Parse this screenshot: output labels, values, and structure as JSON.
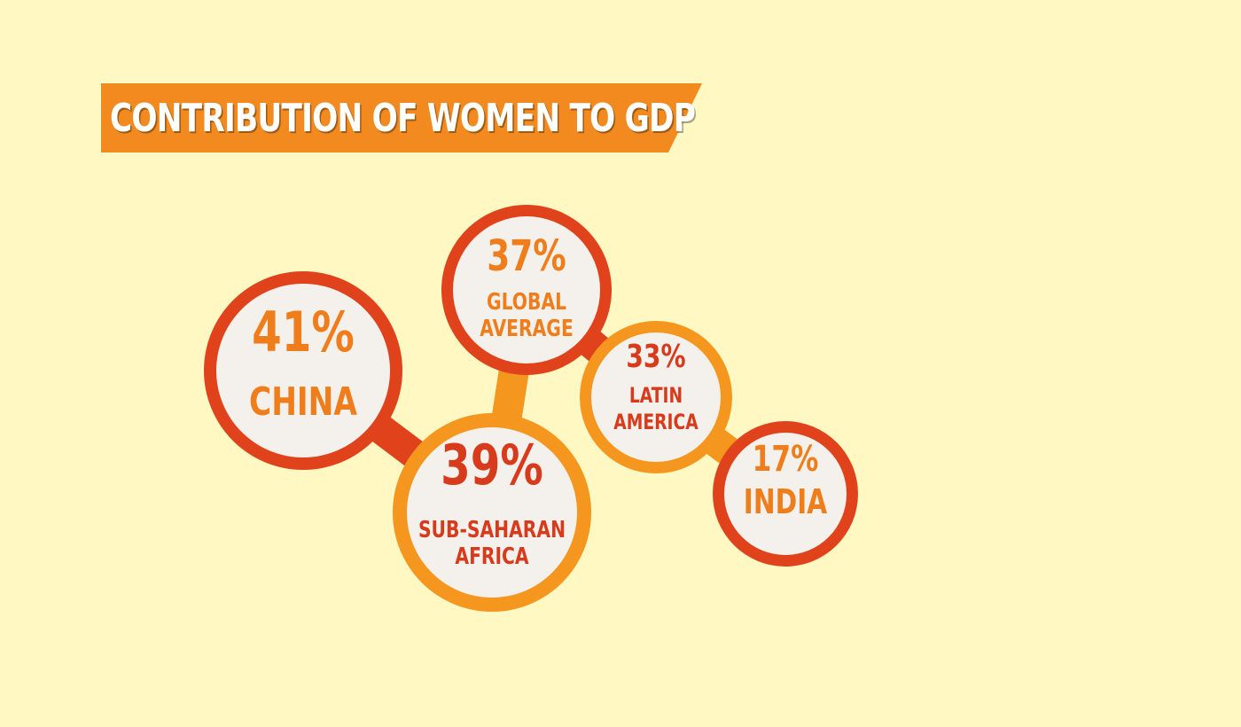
{
  "title": "CONTRIBUTION OF WOMEN TO GDP",
  "colors": {
    "background": "#fff8c2",
    "banner": "#f28a1f",
    "red": "#e0431c",
    "orange": "#f5961e",
    "inner": "#f4f1ec",
    "text_orange": "#f07d1c",
    "text_red": "#d83a1c"
  },
  "chart_data": {
    "type": "bubble",
    "unit": "%",
    "items": [
      {
        "value": 41,
        "value_label": "41%",
        "label_lines": [
          "CHINA"
        ],
        "ring": "red",
        "value_color": "orange",
        "label_color": "orange"
      },
      {
        "value": 37,
        "value_label": "37%",
        "label_lines": [
          "GLOBAL",
          "AVERAGE"
        ],
        "ring": "red",
        "value_color": "orange",
        "label_color": "orange"
      },
      {
        "value": 39,
        "value_label": "39%",
        "label_lines": [
          "SUB-SAHARAN",
          "AFRICA"
        ],
        "ring": "orange",
        "value_color": "red",
        "label_color": "red"
      },
      {
        "value": 33,
        "value_label": "33%",
        "label_lines": [
          "LATIN",
          "AMERICA"
        ],
        "ring": "orange",
        "value_color": "red",
        "label_color": "red"
      },
      {
        "value": 17,
        "value_label": "17%",
        "label_lines": [
          "INDIA"
        ],
        "ring": "red",
        "value_color": "orange",
        "label_color": "orange"
      }
    ]
  }
}
